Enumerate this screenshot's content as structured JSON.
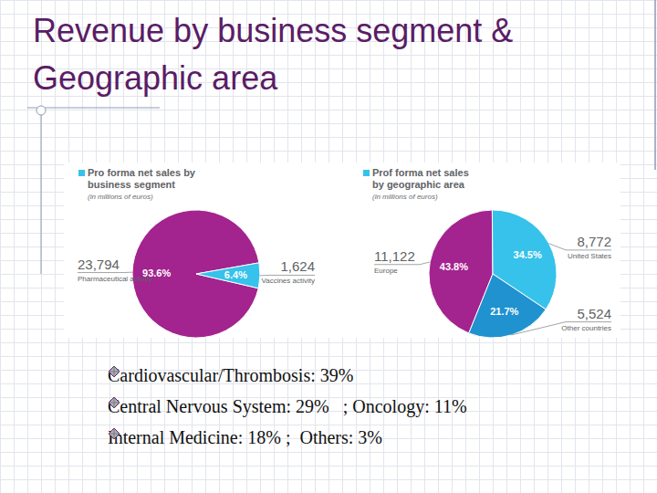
{
  "title": "Revenue by business segment & Geographic area",
  "chart_data": [
    {
      "type": "pie",
      "title": "Pro forma net sales by business segment",
      "subtitle": "(in millions of euros)",
      "categories": [
        "Pharmaceutical activity",
        "Vaccines activity"
      ],
      "values": [
        23794,
        1624
      ],
      "value_labels": [
        "23,794",
        "1,624"
      ],
      "percents": [
        93.6,
        6.4
      ],
      "percent_labels": [
        "93.6%",
        "6.4%"
      ],
      "colors": [
        "#a3238f",
        "#36c2ea"
      ],
      "data_labels": true
    },
    {
      "type": "pie",
      "title": "Prof forma net sales by geographic area",
      "subtitle": "(in millions of euros)",
      "categories": [
        "Europe",
        "United States",
        "Other countries"
      ],
      "values": [
        11122,
        8772,
        5524
      ],
      "value_labels": [
        "11,122",
        "8,772",
        "5,524"
      ],
      "percents": [
        43.8,
        34.5,
        21.7
      ],
      "percent_labels": [
        "43.8%",
        "34.5%",
        "21.7%"
      ],
      "colors": [
        "#a3238f",
        "#36c2ea",
        "#1f92cf"
      ],
      "data_labels": true
    }
  ],
  "bullets": [
    "Cardiovascular/Thrombosis: 39%",
    "Central Nervous System: 29%   ; Oncology: 11%",
    "Internal Medicine: 18% ;  Others: 3%"
  ]
}
